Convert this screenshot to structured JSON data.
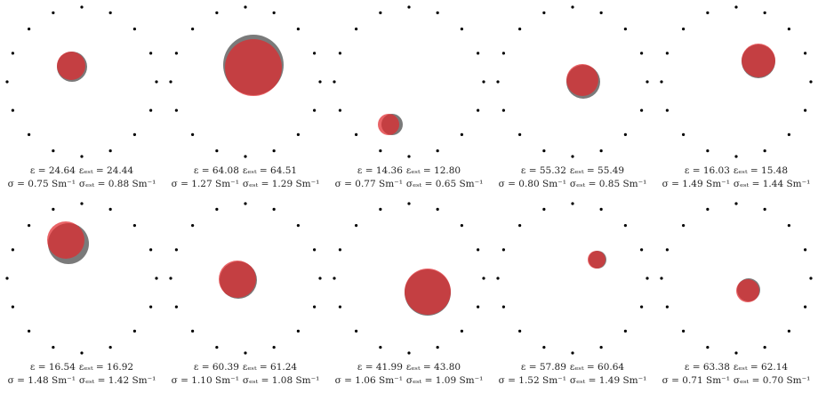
{
  "colors": {
    "true_inclusion": "#6b6b6b",
    "estimated_inclusion": "#e0282c",
    "electrode": "#000000"
  },
  "panels": [
    {
      "eps": "ε = 24.64",
      "eps_est": "εₑₛₜ = 24.44",
      "sigma": "σ = 0.75 Sm⁻¹",
      "sigma_est": "σₑₛₜ = 0.88 Sm⁻¹"
    },
    {
      "eps": "ε = 64.08",
      "eps_est": "εₑₛₜ = 64.51",
      "sigma": "σ = 1.27 Sm⁻¹",
      "sigma_est": "σₑₛₜ = 1.29 Sm⁻¹"
    },
    {
      "eps": "ε = 14.36",
      "eps_est": "εₑₛₜ = 12.80",
      "sigma": "σ = 0.77 Sm⁻¹",
      "sigma_est": "σₑₛₜ = 0.65 Sm⁻¹"
    },
    {
      "eps": "ε = 55.32",
      "eps_est": "εₑₛₜ = 55.49",
      "sigma": "σ = 0.80 Sm⁻¹",
      "sigma_est": "σₑₛₜ = 0.85 Sm⁻¹"
    },
    {
      "eps": "ε = 16.03",
      "eps_est": "εₑₛₜ = 15.48",
      "sigma": "σ = 1.49 Sm⁻¹",
      "sigma_est": "σₑₛₜ = 1.44 Sm⁻¹"
    },
    {
      "eps": "ε = 16.54",
      "eps_est": "εₑₛₜ = 16.92",
      "sigma": "σ = 1.48 Sm⁻¹",
      "sigma_est": "σₑₛₜ = 1.42 Sm⁻¹"
    },
    {
      "eps": "ε = 60.39",
      "eps_est": "εₑₛₜ = 61.24",
      "sigma": "σ = 1.10 Sm⁻¹",
      "sigma_est": "σₑₛₜ = 1.08 Sm⁻¹"
    },
    {
      "eps": "ε = 41.99",
      "eps_est": "εₑₛₜ = 43.80",
      "sigma": "σ = 1.06 Sm⁻¹",
      "sigma_est": "σₑₛₜ = 1.09 Sm⁻¹"
    },
    {
      "eps": "ε = 57.89",
      "eps_est": "εₑₛₜ = 60.64",
      "sigma": "σ = 1.52 Sm⁻¹",
      "sigma_est": "σₑₛₜ = 1.49 Sm⁻¹"
    },
    {
      "eps": "ε = 63.38",
      "eps_est": "εₑₛₜ = 62.14",
      "sigma": "σ = 0.71 Sm⁻¹",
      "sigma_est": "σₑₛₜ = 0.70 Sm⁻¹"
    }
  ]
}
